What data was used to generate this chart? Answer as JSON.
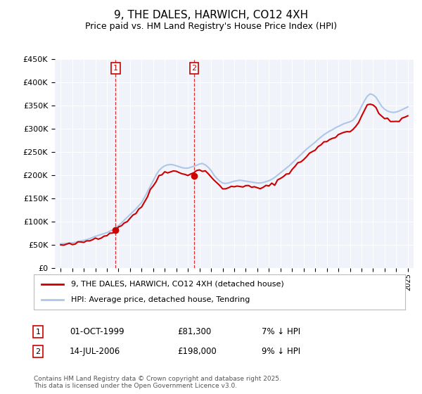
{
  "title": "9, THE DALES, HARWICH, CO12 4XH",
  "subtitle": "Price paid vs. HM Land Registry's House Price Index (HPI)",
  "legend_line1": "9, THE DALES, HARWICH, CO12 4XH (detached house)",
  "legend_line2": "HPI: Average price, detached house, Tendring",
  "sale1_label": "1",
  "sale1_date": "01-OCT-1999",
  "sale1_price": "£81,300",
  "sale1_hpi": "7% ↓ HPI",
  "sale2_label": "2",
  "sale2_date": "14-JUL-2006",
  "sale2_price": "£198,000",
  "sale2_hpi": "9% ↓ HPI",
  "footer": "Contains HM Land Registry data © Crown copyright and database right 2025.\nThis data is licensed under the Open Government Licence v3.0.",
  "hpi_color": "#aec6e8",
  "price_color": "#cc0000",
  "sale1_x": 1999.75,
  "sale1_y": 81300,
  "sale2_x": 2006.54,
  "sale2_y": 198000,
  "ylim": [
    0,
    450000
  ],
  "xlim": [
    1994.5,
    2025.5
  ],
  "vline1_x": 1999.75,
  "vline2_x": 2006.54,
  "background_color": "#ffffff",
  "plot_bg_color": "#f0f4fa",
  "hpi_values": [
    52000,
    52500,
    53000,
    53500,
    54000,
    55000,
    56500,
    58000,
    59500,
    61000,
    63000,
    65500,
    68000,
    70000,
    72000,
    74000,
    76000,
    79000,
    82000,
    86000,
    91000,
    97000,
    103000,
    109000,
    115000,
    121000,
    127000,
    134000,
    141000,
    152000,
    164000,
    176000,
    188000,
    200000,
    210000,
    216000,
    220000,
    222000,
    223000,
    222000,
    220000,
    218000,
    216000,
    215000,
    215000,
    217000,
    219000,
    221000,
    224000,
    225000,
    222000,
    217000,
    210000,
    200000,
    193000,
    187000,
    183000,
    182000,
    183000,
    185000,
    187000,
    188000,
    189000,
    188000,
    187000,
    186000,
    185000,
    184000,
    183000,
    183000,
    184000,
    186000,
    188000,
    191000,
    195000,
    200000,
    205000,
    210000,
    215000,
    220000,
    226000,
    232000,
    238000,
    244000,
    250000,
    256000,
    261000,
    266000,
    271000,
    277000,
    282000,
    287000,
    291000,
    295000,
    298000,
    302000,
    305000,
    308000,
    311000,
    313000,
    315000,
    318000,
    325000,
    335000,
    348000,
    360000,
    370000,
    375000,
    373000,
    368000,
    358000,
    348000,
    342000,
    338000,
    336000,
    335000,
    336000,
    338000,
    341000,
    344000,
    347000,
    349000,
    351000,
    354000,
    356000
  ]
}
